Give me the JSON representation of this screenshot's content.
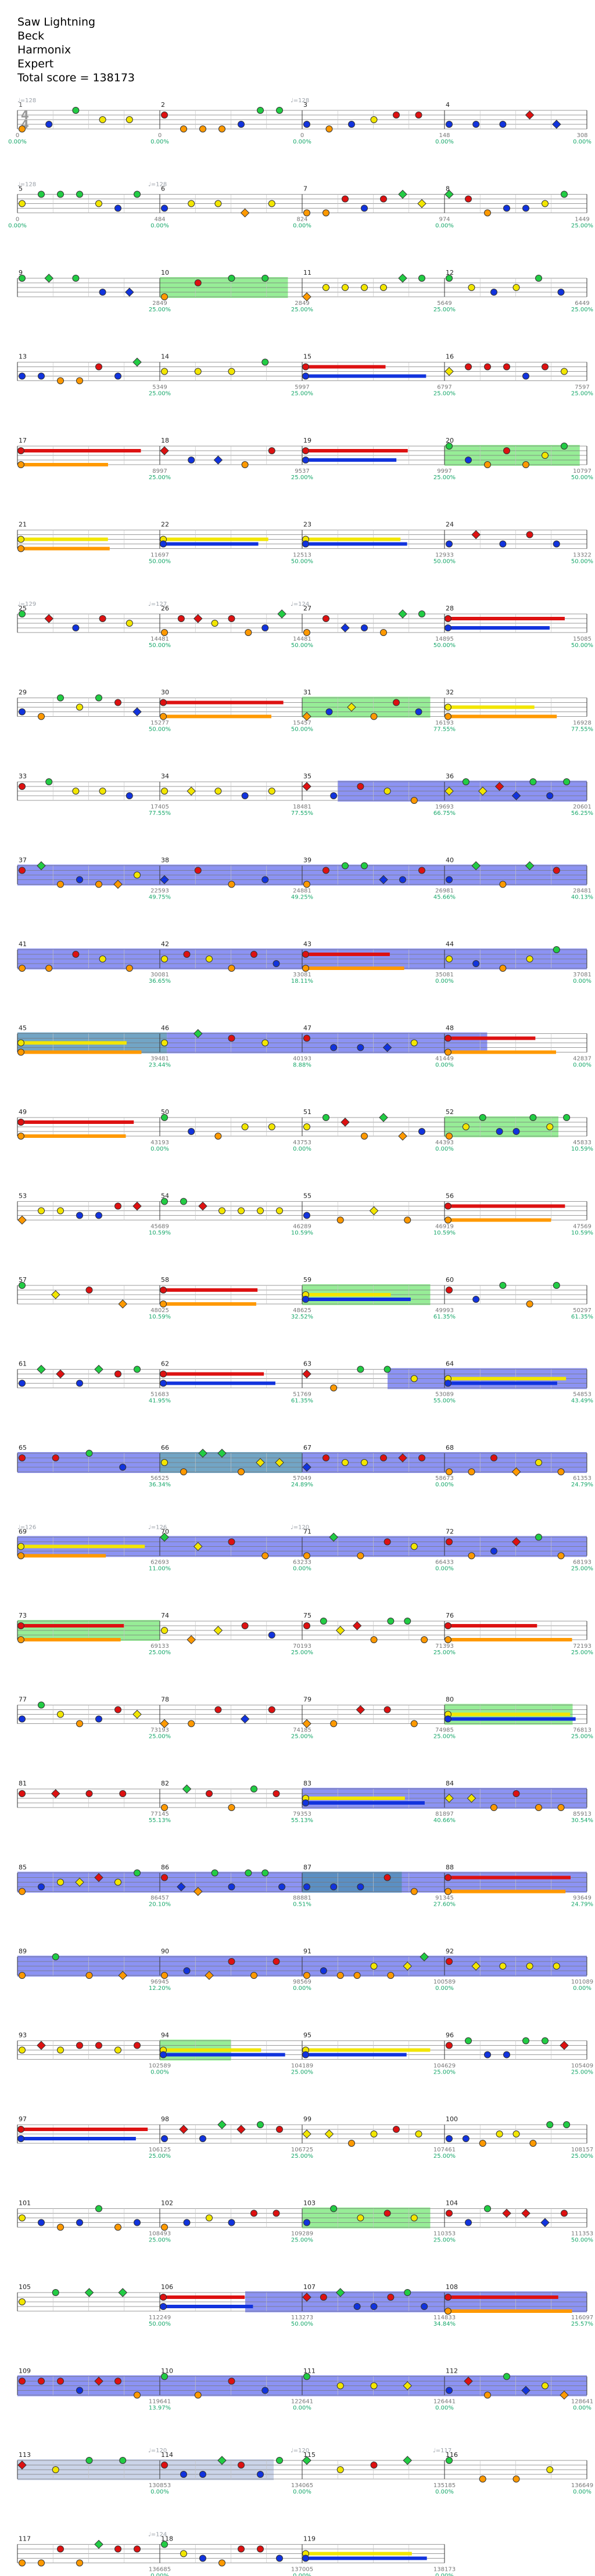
{
  "song": {
    "title": "Saw Lightning",
    "artist": "Beck",
    "charter": "Harmonix",
    "difficulty": "Expert",
    "total_score_label": "Total score = 138173"
  },
  "time_signature": "4/4",
  "colors": {
    "green": "#22cc44",
    "red": "#dd1111",
    "yellow": "#f2e600",
    "blue": "#1133dd",
    "orange": "#ff9900",
    "star_phrase": "#7de87d",
    "overdrive": "#6f78f0",
    "staff_line": "#777777"
  },
  "rows": [
    {
      "start": 1,
      "bpm": [
        "♩=128",
        "",
        "♩=128",
        ""
      ],
      "scores": [
        "0",
        "0",
        "0",
        "148",
        "308"
      ],
      "mults": [
        "0.00%",
        "0.00%",
        "0.00%",
        "0.00%",
        "0.00%"
      ]
    },
    {
      "start": 5,
      "bpm": [
        "♩=128",
        "♩=128",
        "",
        ""
      ],
      "scores": [
        "0",
        "484",
        "824",
        "974",
        "1449"
      ],
      "mults": [
        "0.00%",
        "0.00%",
        "0.00%",
        "0.00%",
        "25.00%"
      ]
    },
    {
      "start": 9,
      "bpm": [
        "",
        "",
        "",
        ""
      ],
      "scores": [
        "",
        "2849",
        "2849",
        "5649",
        "6449"
      ],
      "mults": [
        "",
        "25.00%",
        "25.00%",
        "25.00%",
        "25.00%"
      ]
    },
    {
      "start": 13,
      "bpm": [
        "",
        "",
        "",
        ""
      ],
      "scores": [
        "",
        "5349",
        "5997",
        "6797",
        "7597"
      ],
      "mults": [
        "",
        "25.00%",
        "25.00%",
        "25.00%",
        "25.00%"
      ]
    },
    {
      "start": 17,
      "bpm": [
        "",
        "",
        "",
        ""
      ],
      "scores": [
        "",
        "8997",
        "9537",
        "9997",
        "10797"
      ],
      "mults": [
        "",
        "25.00%",
        "25.00%",
        "25.00%",
        "50.00%"
      ]
    },
    {
      "start": 21,
      "bpm": [
        "",
        "",
        "",
        ""
      ],
      "scores": [
        "",
        "11697",
        "12513",
        "12933",
        "13322"
      ],
      "mults": [
        "",
        "50.00%",
        "50.00%",
        "50.00%",
        "50.00%"
      ]
    },
    {
      "start": 25,
      "bpm": [
        "♩=129",
        "♩=127",
        "♩=124",
        ""
      ],
      "scores": [
        "",
        "14481",
        "14481",
        "14895",
        "15085"
      ],
      "mults": [
        "",
        "50.00%",
        "50.00%",
        "50.00%",
        "50.00%"
      ]
    },
    {
      "start": 29,
      "bpm": [
        "",
        "",
        "",
        ""
      ],
      "scores": [
        "",
        "15277",
        "15457",
        "16193",
        "16928"
      ],
      "mults": [
        "",
        "50.00%",
        "50.00%",
        "77.55%",
        "77.55%"
      ]
    },
    {
      "start": 33,
      "bpm": [
        "",
        "",
        "",
        ""
      ],
      "scores": [
        "",
        "17405",
        "18481",
        "19693",
        "20601"
      ],
      "mults": [
        "",
        "77.55%",
        "77.55%",
        "66.75%",
        "56.25%"
      ]
    },
    {
      "start": 37,
      "bpm": [
        "",
        "",
        "",
        ""
      ],
      "scores": [
        "",
        "22593",
        "24881",
        "26981",
        "28481"
      ],
      "mults": [
        "",
        "49.75%",
        "49.25%",
        "45.66%",
        "40.13%"
      ]
    },
    {
      "start": 41,
      "bpm": [
        "",
        "",
        "",
        ""
      ],
      "scores": [
        "",
        "30081",
        "33081",
        "35081",
        "37081"
      ],
      "mults": [
        "",
        "36.65%",
        "18.11%",
        "0.00%",
        "0.00%"
      ]
    },
    {
      "start": 45,
      "bpm": [
        "",
        "",
        "",
        ""
      ],
      "scores": [
        "",
        "39481",
        "40193",
        "41449",
        "42837"
      ],
      "mults": [
        "",
        "23.44%",
        "8.88%",
        "0.00%",
        "0.00%"
      ]
    },
    {
      "start": 49,
      "bpm": [
        "",
        "",
        "",
        ""
      ],
      "scores": [
        "",
        "43193",
        "43753",
        "44393",
        "45833"
      ],
      "mults": [
        "",
        "0.00%",
        "0.00%",
        "0.00%",
        "10.59%"
      ]
    },
    {
      "start": 53,
      "bpm": [
        "",
        "",
        "",
        ""
      ],
      "scores": [
        "",
        "45689",
        "46289",
        "46919",
        "47569"
      ],
      "mults": [
        "",
        "10.59%",
        "10.59%",
        "10.59%",
        "10.59%"
      ]
    },
    {
      "start": 57,
      "bpm": [
        "",
        "",
        "",
        ""
      ],
      "scores": [
        "",
        "48025",
        "48625",
        "49993",
        "50297"
      ],
      "mults": [
        "",
        "10.59%",
        "32.52%",
        "61.35%",
        "61.35%"
      ]
    },
    {
      "start": 61,
      "bpm": [
        "",
        "",
        "",
        ""
      ],
      "scores": [
        "",
        "51683",
        "51769",
        "53089",
        "54853"
      ],
      "mults": [
        "",
        "41.95%",
        "61.35%",
        "55.00%",
        "43.49%"
      ]
    },
    {
      "start": 65,
      "bpm": [
        "",
        "",
        "",
        ""
      ],
      "scores": [
        "",
        "56525",
        "57049",
        "58673",
        "61353"
      ],
      "mults": [
        "",
        "36.34%",
        "24.89%",
        "0.00%",
        "24.79%"
      ]
    },
    {
      "start": 69,
      "bpm": [
        "♩=126",
        "♩=126",
        "♩=120",
        ""
      ],
      "scores": [
        "",
        "62693",
        "63233",
        "66433",
        "68193"
      ],
      "mults": [
        "",
        "11.00%",
        "0.00%",
        "0.00%",
        "25.00%"
      ]
    },
    {
      "start": 73,
      "bpm": [
        "",
        "",
        "",
        ""
      ],
      "scores": [
        "",
        "69133",
        "70193",
        "71393",
        "72193"
      ],
      "mults": [
        "",
        "25.00%",
        "25.00%",
        "25.00%",
        "25.00%"
      ]
    },
    {
      "start": 77,
      "bpm": [
        "",
        "",
        "",
        ""
      ],
      "scores": [
        "",
        "73193",
        "74185",
        "74985",
        "76813"
      ],
      "mults": [
        "",
        "25.00%",
        "25.00%",
        "25.00%",
        "25.00%"
      ]
    },
    {
      "start": 81,
      "bpm": [
        "",
        "",
        "",
        ""
      ],
      "scores": [
        "",
        "77145",
        "79353",
        "81897",
        "85913"
      ],
      "mults": [
        "",
        "55.13%",
        "55.13%",
        "40.66%",
        "30.54%"
      ]
    },
    {
      "start": 85,
      "bpm": [
        "",
        "",
        "",
        ""
      ],
      "scores": [
        "",
        "86457",
        "88881",
        "91345",
        "93649"
      ],
      "mults": [
        "",
        "20.10%",
        "0.51%",
        "27.60%",
        "24.79%"
      ]
    },
    {
      "start": 89,
      "bpm": [
        "",
        "",
        "",
        ""
      ],
      "scores": [
        "",
        "96945",
        "98569",
        "100589",
        "101089"
      ],
      "mults": [
        "",
        "12.20%",
        "0.00%",
        "0.00%",
        "0.00%"
      ]
    },
    {
      "start": 93,
      "bpm": [
        "",
        "",
        "",
        ""
      ],
      "scores": [
        "",
        "102589",
        "104189",
        "104629",
        "105409"
      ],
      "mults": [
        "",
        "0.00%",
        "25.00%",
        "25.00%",
        "25.00%"
      ]
    },
    {
      "start": 97,
      "bpm": [
        "",
        "",
        "",
        ""
      ],
      "scores": [
        "",
        "106125",
        "106725",
        "107461",
        "108157"
      ],
      "mults": [
        "",
        "25.00%",
        "25.00%",
        "25.00%",
        "25.00%"
      ]
    },
    {
      "start": 101,
      "bpm": [
        "",
        "",
        "",
        ""
      ],
      "scores": [
        "",
        "108493",
        "109289",
        "110353",
        "111353"
      ],
      "mults": [
        "",
        "25.00%",
        "25.00%",
        "25.00%",
        "50.00%"
      ]
    },
    {
      "start": 105,
      "bpm": [
        "",
        "",
        "",
        ""
      ],
      "scores": [
        "",
        "112249",
        "113273",
        "114833",
        "116097"
      ],
      "mults": [
        "",
        "50.00%",
        "50.00%",
        "34.84%",
        "25.57%"
      ]
    },
    {
      "start": 109,
      "bpm": [
        "",
        "",
        "",
        ""
      ],
      "scores": [
        "",
        "119641",
        "122641",
        "126441",
        "128641"
      ],
      "mults": [
        "",
        "13.97%",
        "0.00%",
        "0.00%",
        "0.00%"
      ]
    },
    {
      "start": 113,
      "bpm": [
        "",
        "♩=120",
        "♩=120",
        "♩=117"
      ],
      "scores": [
        "",
        "130853",
        "134065",
        "135185",
        "136649"
      ],
      "mults": [
        "",
        "0.00%",
        "0.00%",
        "0.00%",
        "0.00%"
      ]
    },
    {
      "start": 117,
      "bpm": [
        "",
        "♩=124",
        "",
        ""
      ],
      "scores": [
        "",
        "136685",
        "137005",
        "138173",
        ""
      ],
      "mults": [
        "",
        "0.00%",
        "0.00%",
        "0.00%",
        ""
      ]
    }
  ]
}
